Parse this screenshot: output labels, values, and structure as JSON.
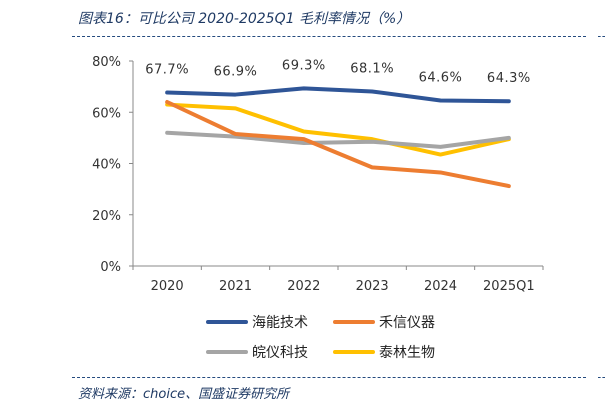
{
  "header": {
    "title": "图表16：可比公司 2020-2025Q1 毛利率情况（%）"
  },
  "footer": {
    "source": "资料来源：choice、国盛证券研究所"
  },
  "chart_data": {
    "type": "line",
    "categories": [
      "2020",
      "2021",
      "2022",
      "2023",
      "2024",
      "2025Q1"
    ],
    "y_ticks": [
      "0%",
      "20%",
      "40%",
      "60%",
      "80%"
    ],
    "ylim": [
      0,
      80
    ],
    "grid": false,
    "legend_placement": "bottom",
    "series": [
      {
        "name": "海能技术",
        "color": "#2f5597",
        "values": [
          67.7,
          66.9,
          69.3,
          68.1,
          64.6,
          64.3
        ]
      },
      {
        "name": "禾信仪器",
        "color": "#ed7d31",
        "values": [
          64.0,
          51.5,
          49.5,
          38.5,
          36.5,
          31.2
        ]
      },
      {
        "name": "皖仪科技",
        "color": "#a5a5a5",
        "values": [
          52.0,
          50.5,
          48.0,
          48.5,
          46.5,
          50.0
        ]
      },
      {
        "name": "泰林生物",
        "color": "#ffc000",
        "values": [
          63.0,
          61.5,
          52.5,
          49.5,
          43.5,
          49.5
        ]
      }
    ],
    "data_labels": [
      "67.7%",
      "66.9%",
      "69.3%",
      "68.1%",
      "64.6%",
      "64.3%"
    ]
  }
}
